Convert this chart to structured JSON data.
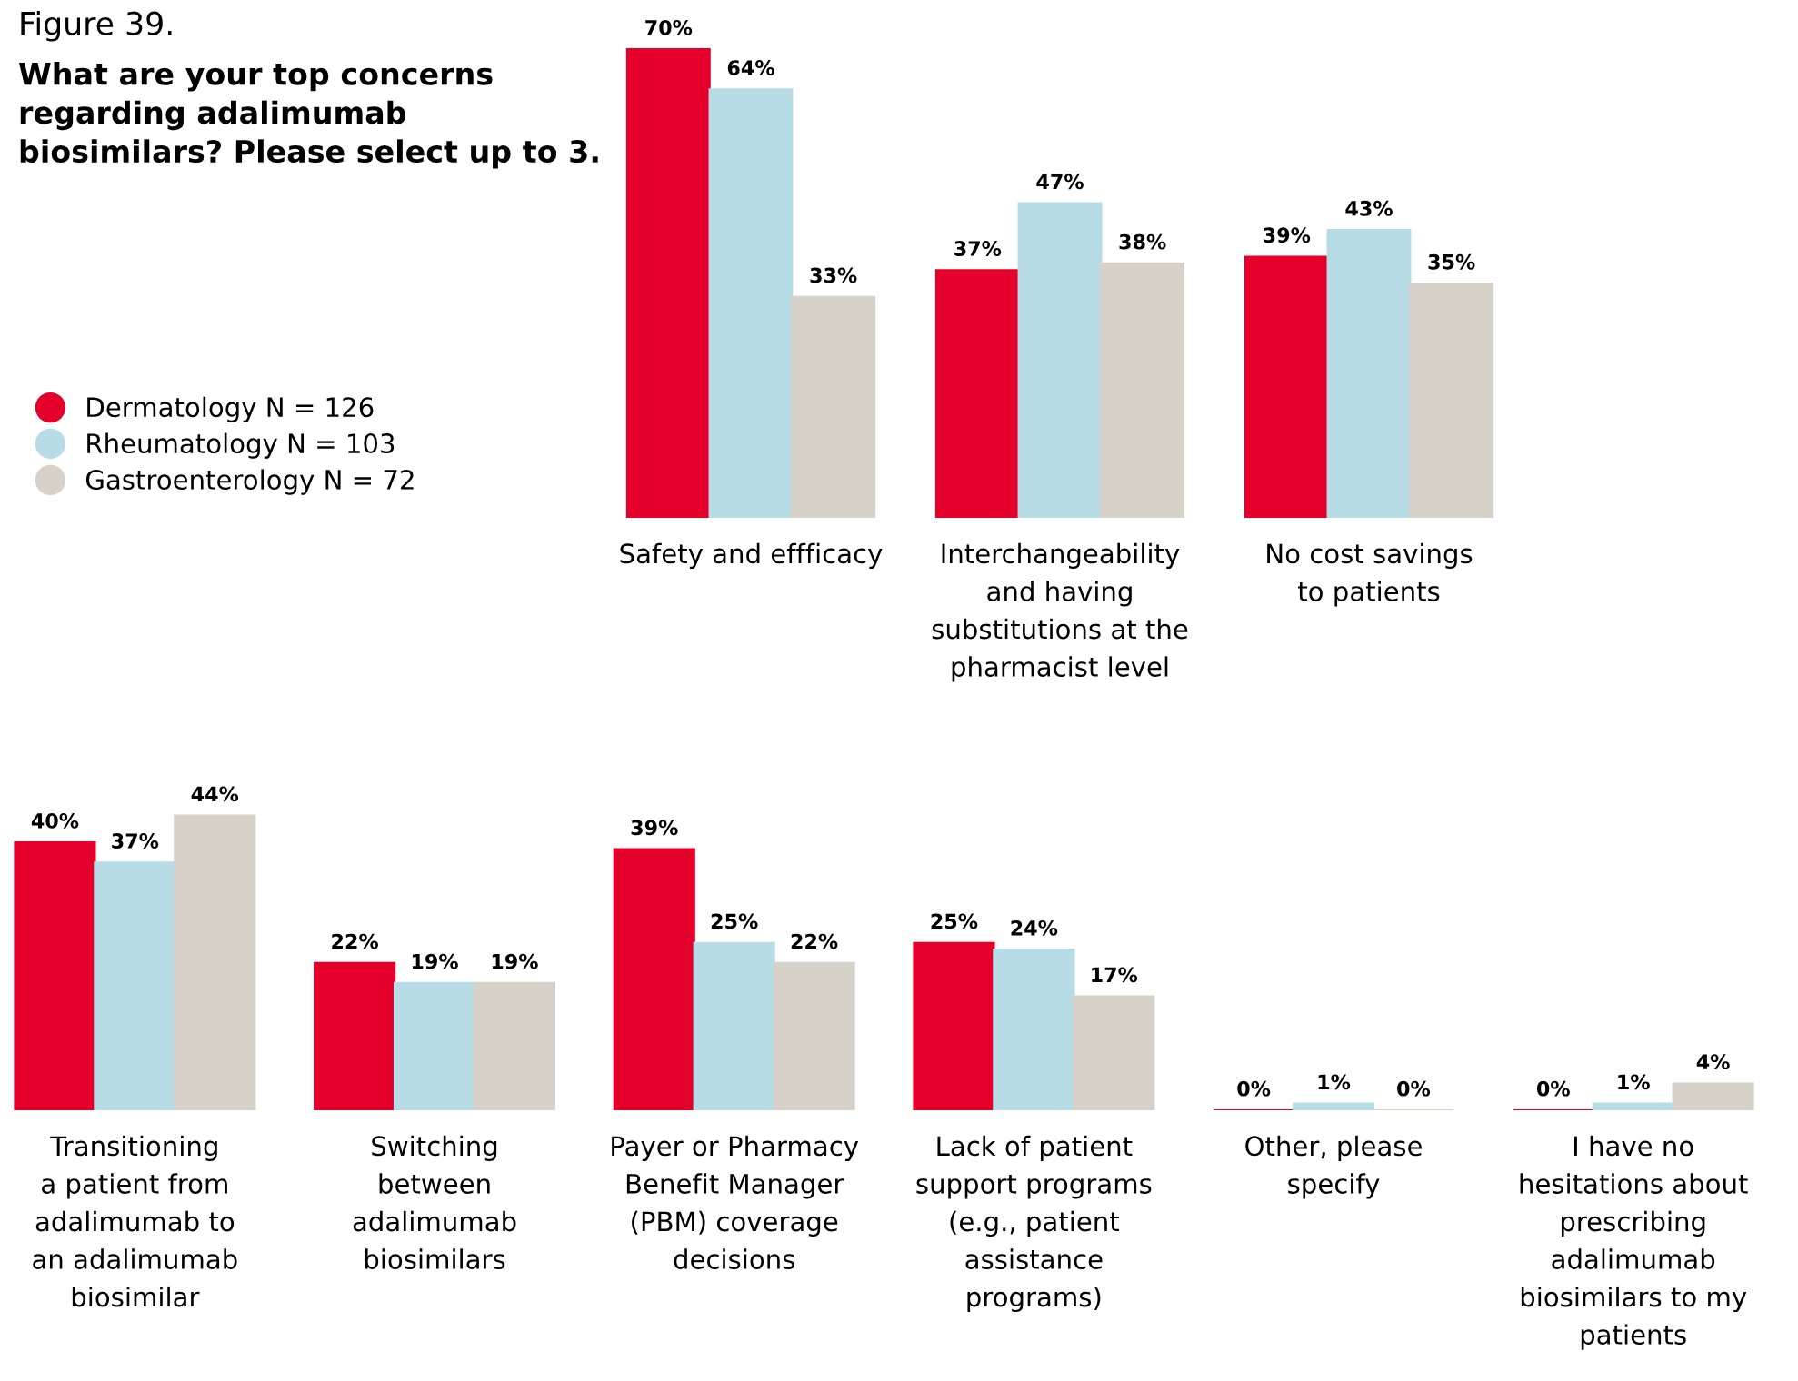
{
  "chart_data": [
    {
      "type": "bar",
      "annotations": [
        "Figure 39."
      ],
      "subtitle": "What are your top concerns\nregarding adalimumab\nbiosimilars? Please select up to 3.",
      "legend": "left",
      "categories": [
        "Safety and effficacy",
        "Interchangeability\nand having\nsubstitutions at the\npharmacist level",
        "No cost savings\nto patients"
      ],
      "series": [
        {
          "name": "Dermatology N = 126",
          "color": "#e4002b",
          "values": [
            70,
            37,
            39
          ],
          "value_labels": [
            "70%",
            "37%",
            "39%"
          ]
        },
        {
          "name": "Rheumatology N = 103",
          "color": "#b8dce6",
          "values": [
            64,
            47,
            43
          ],
          "value_labels": [
            "64%",
            "47%",
            "43%"
          ]
        },
        {
          "name": "Gastroenterology N = 72",
          "color": "#d6d2c9",
          "values": [
            33,
            38,
            35
          ],
          "value_labels": [
            "33%",
            "38%",
            "35%"
          ]
        }
      ]
    },
    {
      "type": "bar",
      "categories": [
        "Transitioning\na patient from\nadalimumab to\nan adalimumab\nbiosimilar",
        "Switching\nbetween\nadalimumab\nbiosimilars",
        "Payer or Pharmacy\nBenefit Manager\n(PBM) coverage\ndecisions",
        "Lack of patient\nsupport programs\n(e.g., patient\nassistance\nprograms)",
        "Other, please\nspecify",
        "I have no\nhesitations about\nprescribing\nadalimumab\nbiosimilars to my\npatients"
      ],
      "series": [
        {
          "color": "#e4002b",
          "values": [
            40,
            22,
            39,
            25,
            0,
            0
          ],
          "value_labels": [
            "40%",
            "22%",
            "39%",
            "25%",
            "0%",
            "0%"
          ]
        },
        {
          "color": "#b8dce6",
          "values": [
            37,
            19,
            25,
            24,
            1,
            1
          ],
          "value_labels": [
            "37%",
            "19%",
            "25%",
            "24%",
            "1%",
            "1%"
          ]
        },
        {
          "color": "#d6d2c9",
          "values": [
            44,
            19,
            22,
            17,
            0,
            4
          ],
          "value_labels": [
            "44%",
            "19%",
            "22%",
            "17%",
            "0%",
            "4%"
          ]
        }
      ]
    }
  ]
}
